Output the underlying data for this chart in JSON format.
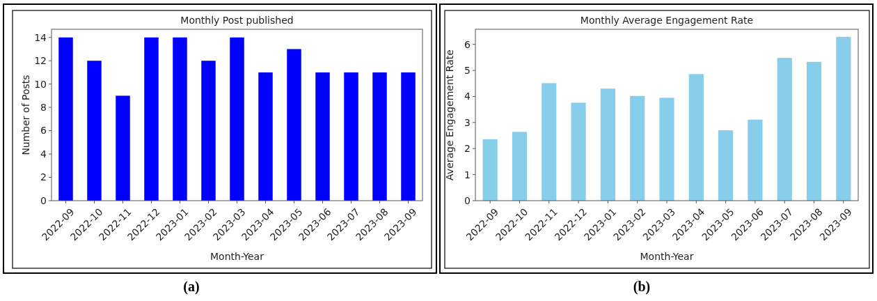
{
  "chart_data": [
    {
      "type": "bar",
      "title": "Monthly Post published",
      "xlabel": "Month-Year",
      "ylabel": "Number of Posts",
      "categories": [
        "2022-09",
        "2022-10",
        "2022-11",
        "2022-12",
        "2023-01",
        "2023-02",
        "2023-03",
        "2023-04",
        "2023-05",
        "2023-06",
        "2023-07",
        "2023-08",
        "2023-09"
      ],
      "values": [
        14,
        12,
        9,
        14,
        14,
        12,
        14,
        11,
        13,
        11,
        11,
        11,
        11
      ],
      "color": "#0000ff",
      "ylim": [
        0,
        14.7
      ],
      "yticks": [
        0,
        2,
        4,
        6,
        8,
        10,
        12,
        14
      ],
      "grid": false,
      "annotations": [
        "(a)"
      ]
    },
    {
      "type": "bar",
      "title": "Monthly Average Engagement Rate",
      "xlabel": "Month-Year",
      "ylabel": "Average Engagement Rate",
      "categories": [
        "2022-09",
        "2022-10",
        "2022-11",
        "2022-12",
        "2023-01",
        "2023-02",
        "2023-03",
        "2023-04",
        "2023-05",
        "2023-06",
        "2023-07",
        "2023-08",
        "2023-09"
      ],
      "values": [
        2.36,
        2.64,
        4.51,
        3.76,
        4.3,
        4.02,
        3.95,
        4.86,
        2.7,
        3.11,
        5.48,
        5.33,
        6.29
      ],
      "color": "#87ceeb",
      "ylim": [
        0,
        6.58
      ],
      "yticks": [
        0,
        1,
        2,
        3,
        4,
        5,
        6
      ],
      "grid": false,
      "annotations": [
        "(b)"
      ]
    }
  ]
}
